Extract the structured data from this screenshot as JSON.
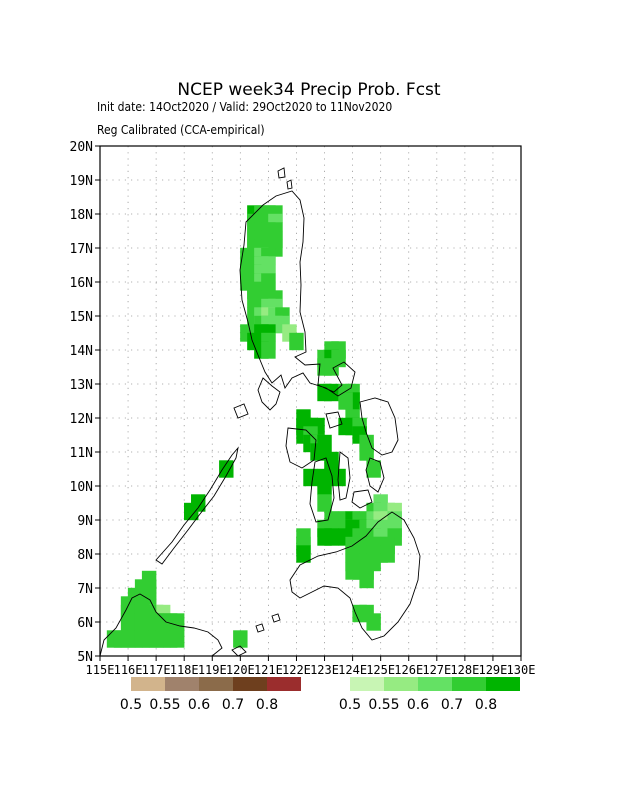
{
  "header": {
    "title": "NCEP week34 Precip Prob. Fcst",
    "init_line": "Init date: 14Oct2020 / Valid: 29Oct2020 to 11Nov2020",
    "method_line": "Reg Calibrated (CCA-empirical)"
  },
  "map": {
    "lat_labels": [
      "20N",
      "19N",
      "18N",
      "17N",
      "16N",
      "15N",
      "14N",
      "13N",
      "12N",
      "11N",
      "10N",
      "9N",
      "8N",
      "7N",
      "6N",
      "5N"
    ],
    "lon_labels": [
      "115E",
      "116E",
      "117E",
      "118E",
      "119E",
      "120E",
      "121E",
      "122E",
      "123E",
      "124E",
      "125E",
      "126E",
      "127E",
      "128E",
      "129E",
      "130E"
    ],
    "lat_range": [
      5,
      20
    ],
    "lon_range": [
      115,
      130
    ],
    "grid": "dotted",
    "region": "Philippines"
  },
  "legend": {
    "below": {
      "labels": [
        "0.5",
        "0.55",
        "0.6",
        "0.7",
        "0.8"
      ],
      "colors": [
        "#d2b48c",
        "#a0826c",
        "#8b6b4a",
        "#6e3f1e",
        "#9b2d2d"
      ]
    },
    "above": {
      "labels": [
        "0.5",
        "0.55",
        "0.6",
        "0.7",
        "0.8"
      ],
      "colors": [
        "#c8f5b4",
        "#96eb82",
        "#64e164",
        "#32cd32",
        "#00b400"
      ]
    }
  }
}
